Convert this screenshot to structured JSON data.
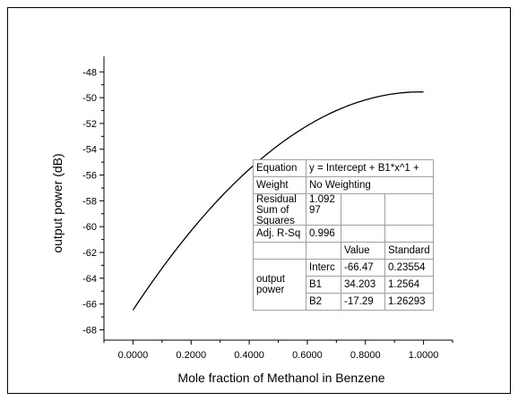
{
  "chart_data": {
    "type": "line",
    "xlabel": "Mole fraction of Methanol in Benzene",
    "ylabel": "output power (dB)",
    "xlim": [
      -0.1,
      1.1
    ],
    "ylim": [
      -68.8,
      -46.8
    ],
    "x_ticks": [
      "0.0000",
      "0.2000",
      "0.4000",
      "0.6000",
      "0.8000",
      "1.0000"
    ],
    "y_ticks": [
      "-48",
      "-50",
      "-52",
      "-54",
      "-56",
      "-58",
      "-60",
      "-62",
      "-64",
      "-66",
      "-68"
    ],
    "series": [
      {
        "fit": {
          "intercept": -66.47,
          "b1": 34.203,
          "b2": -17.29
        },
        "x_range": [
          0,
          1
        ]
      }
    ],
    "grid": false,
    "stats_table": {
      "equation_label": "Equation",
      "equation": "y = Intercept + B1*x^1 +",
      "weight_label": "Weight",
      "weight": "No Weighting",
      "residual_label": "Residual Sum of Squares",
      "residual": "1.092 97",
      "adj_label": "Adj. R-Sq",
      "adj": "0.996",
      "value_header": "Value",
      "std_header": "Standard",
      "group_label": "output power",
      "rows": [
        {
          "param": "Interc",
          "value": "-66.47",
          "std": "0.23554"
        },
        {
          "param": "B1",
          "value": "34.203",
          "std": "1.2564"
        },
        {
          "param": "B2",
          "value": "-17.29",
          "std": "1.26293"
        }
      ]
    }
  }
}
